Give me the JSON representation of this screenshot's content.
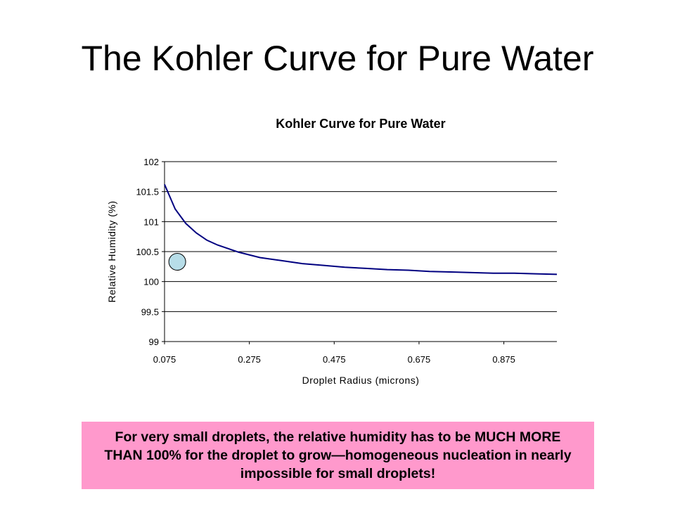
{
  "slide": {
    "title": "The Kohler Curve for Pure Water",
    "callout": "For very small droplets, the relative humidity has to be MUCH MORE THAN 100% for the droplet to grow—homogeneous nucleation in nearly impossible for small droplets!"
  },
  "colors": {
    "curve": "#000080",
    "marker_fill": "#b7dde8",
    "callout_bg": "#ff99cc"
  },
  "chart_data": {
    "type": "line",
    "title": "Kohler Curve for Pure Water",
    "xlabel": "Droplet Radius (microns)",
    "ylabel": "Relative Humidity (%)",
    "x_ticks": [
      "0.075",
      "0.275",
      "0.475",
      "0.675",
      "0.875"
    ],
    "y_ticks": [
      "99",
      "99.5",
      "100",
      "100.5",
      "101",
      "101.5",
      "102"
    ],
    "xlim": [
      0.075,
      1.0
    ],
    "ylim": [
      99,
      102
    ],
    "grid": "horizontal",
    "legend": "none",
    "series": [
      {
        "x": [
          0.075,
          0.1,
          0.125,
          0.15,
          0.175,
          0.2,
          0.25,
          0.3,
          0.35,
          0.4,
          0.45,
          0.5,
          0.55,
          0.6,
          0.65,
          0.7,
          0.75,
          0.8,
          0.85,
          0.9,
          0.95,
          1.0
        ],
        "y": [
          101.62,
          101.21,
          100.97,
          100.81,
          100.69,
          100.61,
          100.49,
          100.4,
          100.35,
          100.3,
          100.27,
          100.24,
          100.22,
          100.2,
          100.19,
          100.17,
          100.16,
          100.15,
          100.14,
          100.14,
          100.13,
          100.12
        ]
      }
    ],
    "marker": {
      "x": 0.105,
      "y": 100.33
    }
  }
}
